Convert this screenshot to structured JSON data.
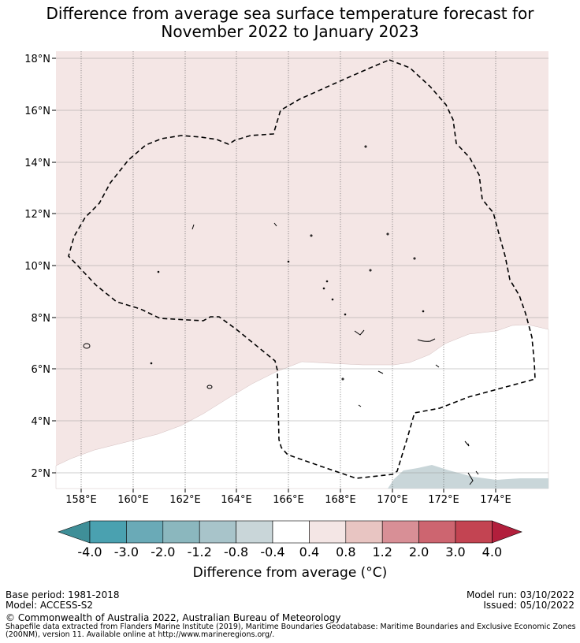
{
  "title": {
    "line1": "Difference from average sea surface temperature forecast for",
    "line2": "November 2022 to January 2023"
  },
  "map": {
    "lat_labels": [
      "18°N",
      "16°N",
      "14°N",
      "12°N",
      "10°N",
      "8°N",
      "6°N",
      "4°N",
      "2°N"
    ],
    "lon_labels": [
      "158°E",
      "160°E",
      "162°E",
      "164°E",
      "166°E",
      "168°E",
      "170°E",
      "172°E",
      "174°E"
    ],
    "colors": {
      "warm_light": "#f4e6e5",
      "neutral": "#ffffff",
      "cool_light": "#c9d6d9",
      "boundary": "#000000"
    }
  },
  "colorbar": {
    "ticks": [
      "-4.0",
      "-3.0",
      "-2.0",
      "-1.2",
      "-0.8",
      "-0.4",
      "0.4",
      "0.8",
      "1.2",
      "2.0",
      "3.0",
      "4.0"
    ],
    "colors": [
      "#3f8f98",
      "#4aa1b0",
      "#6aaab7",
      "#8bb7be",
      "#a8c4ca",
      "#c9d6d9",
      "#ffffff",
      "#f4e6e5",
      "#e8c5c2",
      "#d88f96",
      "#cd6570",
      "#c34452",
      "#b21f3c"
    ],
    "label": "Difference from average (°C)"
  },
  "footer": {
    "base_period": "Base period: 1981-2018",
    "model": "Model: ACCESS-S2",
    "model_run": "Model run: 03/10/2022",
    "issued": "Issued: 05/10/2022",
    "copyright": "© Commonwealth of Australia 2022, Australian Bureau of Meteorology",
    "shapefile_line1": "Shapefile data extracted from Flanders Marine Institute (2019), Maritime Boundaries Geodatabase: Maritime Boundaries and Exclusive Economic Zones",
    "shapefile_line2": "(200NM), version 11. Available online at http://www.marineregions.org/."
  }
}
